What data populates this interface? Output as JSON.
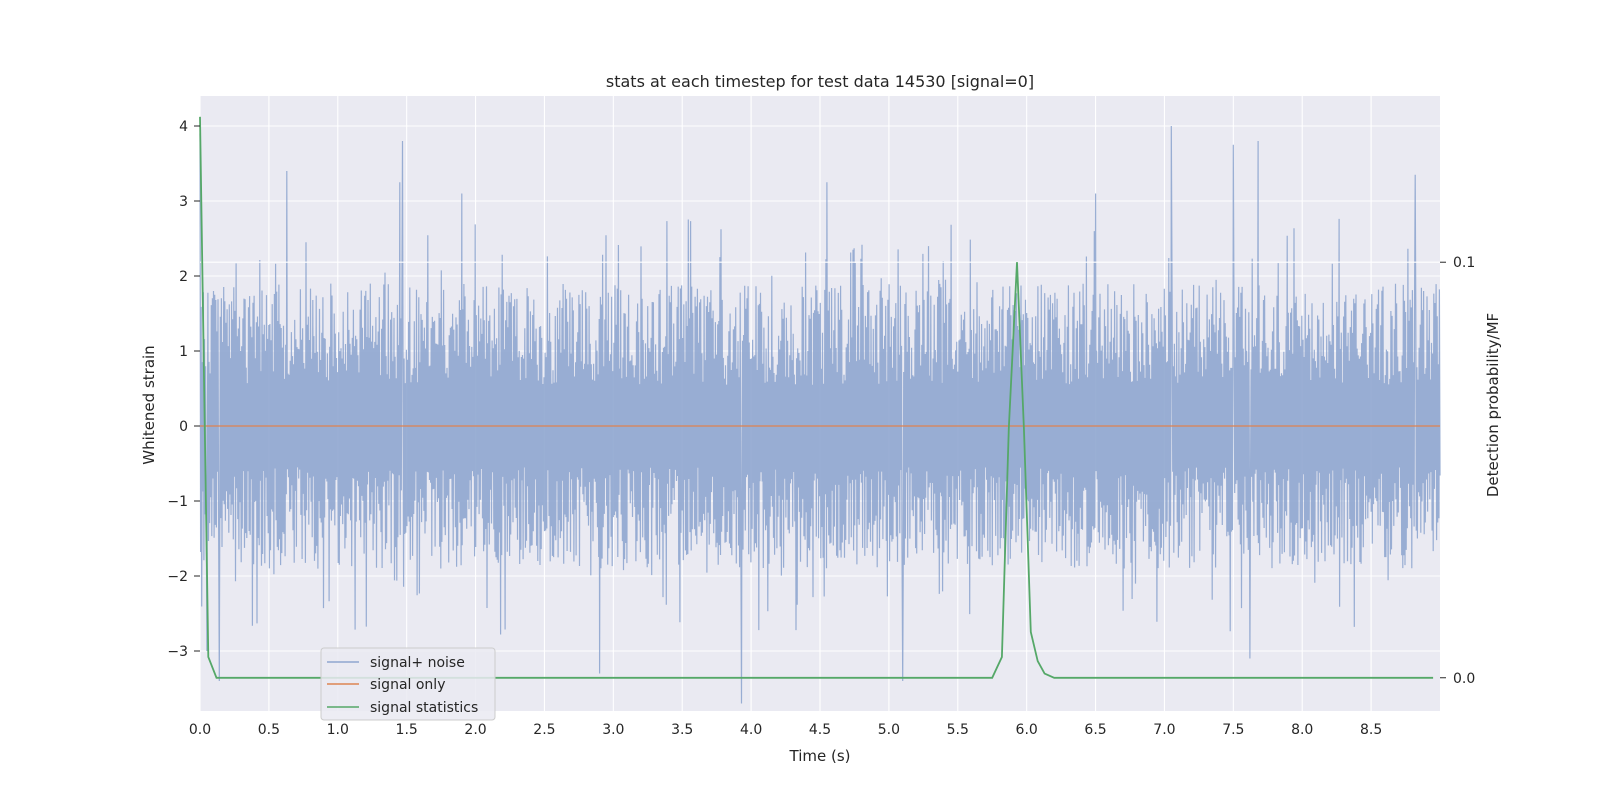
{
  "chart_data": {
    "type": "line",
    "title": "stats at each timestep for test data 14530 [signal=0]",
    "xlabel": "Time (s)",
    "ylabel": "Whitened strain",
    "ylabel_right": "Detection probability/MF",
    "xlim": [
      0.0,
      9.0
    ],
    "ylim": [
      -3.8,
      4.4
    ],
    "ylim_right": [
      -0.008,
      0.14
    ],
    "x_ticks": [
      "0.0",
      "0.5",
      "1.0",
      "1.5",
      "2.0",
      "2.5",
      "3.0",
      "3.5",
      "4.0",
      "4.5",
      "5.0",
      "5.5",
      "6.0",
      "6.5",
      "7.0",
      "7.5",
      "8.0",
      "8.5"
    ],
    "y_ticks": [
      "−3",
      "−2",
      "−1",
      "0",
      "1",
      "2",
      "3",
      "4"
    ],
    "y_ticks_right": [
      "0.0",
      "0.1"
    ],
    "grid": true,
    "legend_position": "lower-left",
    "noise_band": {
      "typical_upper": 1.9,
      "typical_lower": -1.9,
      "max": 4.0,
      "min": -3.7
    },
    "series": [
      {
        "name": "signal+ noise",
        "color": "#8fa6cf",
        "axis": "left",
        "x": [
          0.0,
          0.05,
          0.14,
          0.63,
          1.45,
          1.47,
          1.9,
          2.9,
          3.93,
          4.55,
          5.1,
          6.5,
          7.05,
          7.5,
          7.62,
          7.68,
          8.82
        ],
        "values": [
          3.9,
          -3.0,
          -3.4,
          3.4,
          3.25,
          3.8,
          3.1,
          -3.3,
          -3.7,
          3.25,
          -3.4,
          3.1,
          4.0,
          3.75,
          -3.1,
          3.8,
          3.35
        ]
      },
      {
        "name": "signal only",
        "color": "#dd8452",
        "axis": "left",
        "x": [
          0.0,
          9.0
        ],
        "values": [
          0.0,
          0.0
        ]
      },
      {
        "name": "signal statistics",
        "color": "#55a868",
        "axis": "right",
        "x": [
          0.0,
          0.06,
          0.12,
          5.75,
          5.82,
          5.87,
          5.93,
          5.98,
          6.03,
          6.08,
          6.13,
          6.2,
          8.95
        ],
        "values": [
          0.135,
          0.005,
          0.0,
          0.0,
          0.005,
          0.06,
          0.1,
          0.06,
          0.011,
          0.004,
          0.001,
          0.0,
          0.0
        ]
      }
    ]
  },
  "colors": {
    "plot_bg": "#eaeaf2",
    "grid": "#ffffff",
    "text": "#262626"
  }
}
